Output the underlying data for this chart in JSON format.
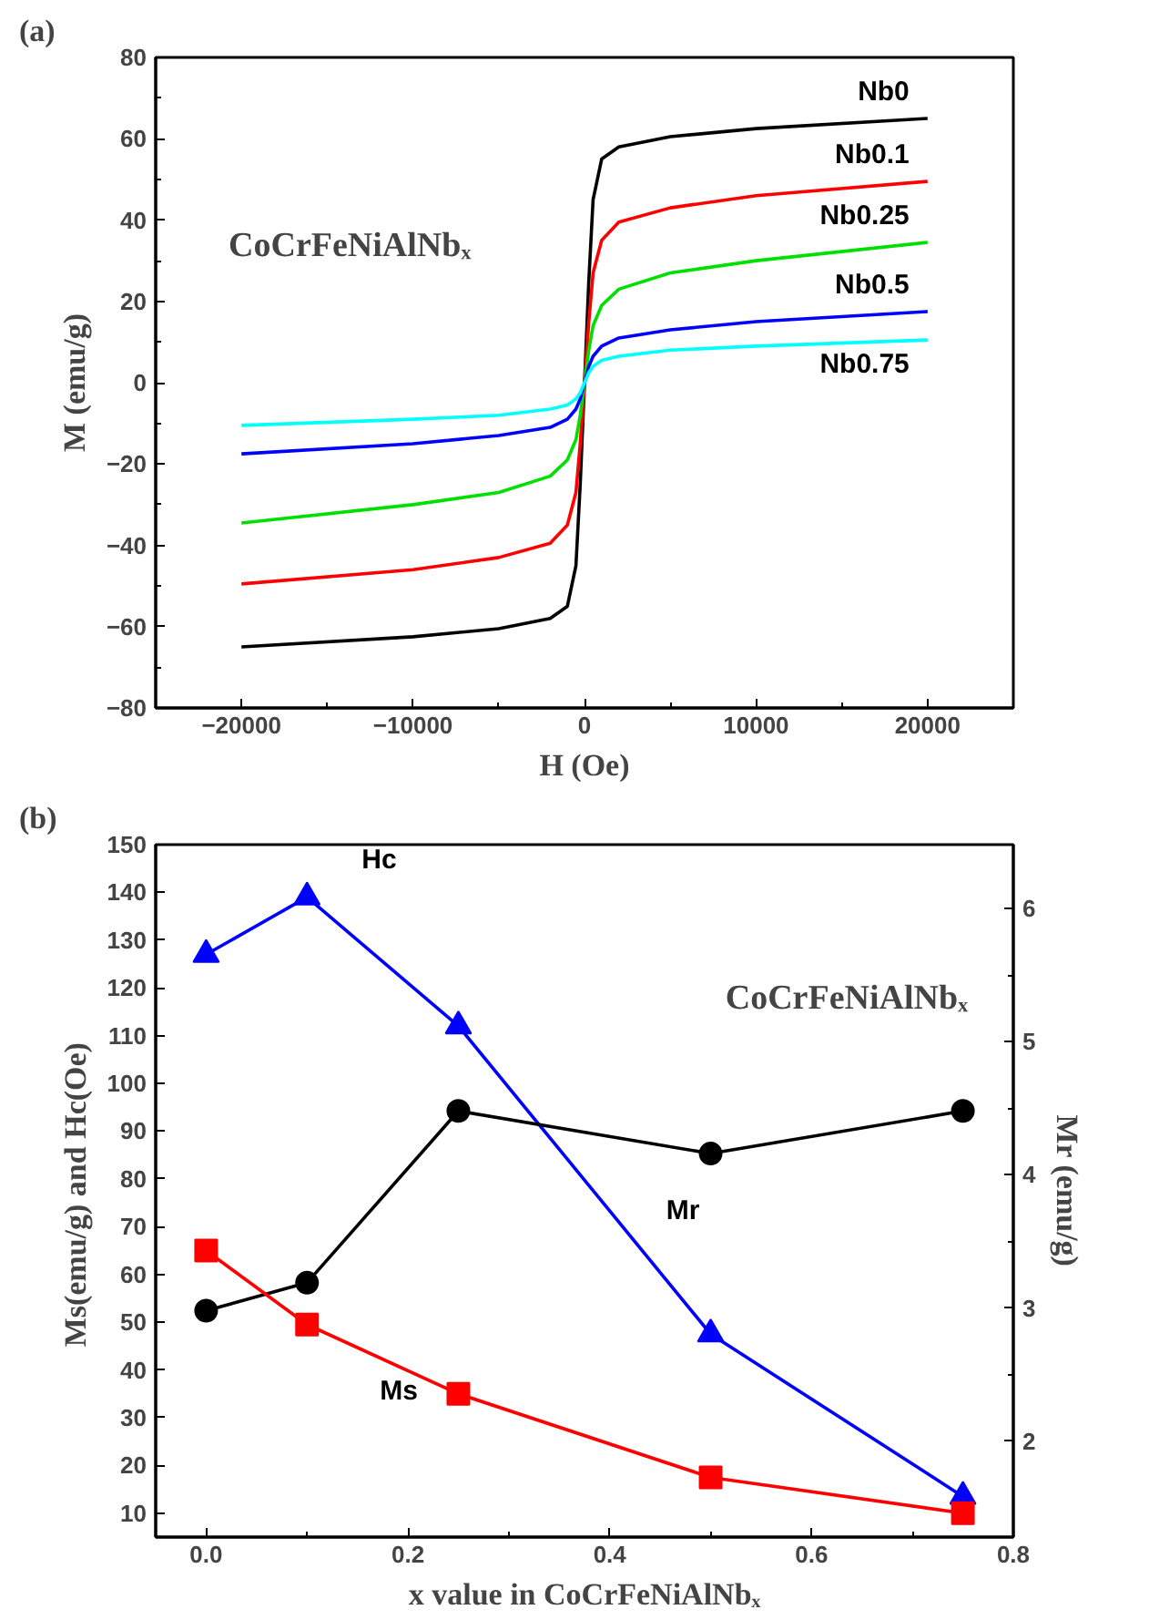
{
  "chart_data": [
    {
      "type": "line",
      "title": "(a)",
      "xlabel": "H (Oe)",
      "ylabel": "M (emu/g)",
      "xlim": [
        -25000,
        25000
      ],
      "ylim": [
        -80,
        80
      ],
      "xticks": [
        -20000,
        -10000,
        0,
        10000,
        20000
      ],
      "yticks": [
        -80,
        -60,
        -40,
        -20,
        0,
        20,
        40,
        60,
        80
      ],
      "grid": false,
      "marker": "none",
      "line_style": "solid",
      "annotations": [
        "CoCrFeNiAlNbₓ"
      ],
      "x": [
        -20000,
        -10000,
        -5000,
        -2000,
        -1000,
        -500,
        -250,
        0,
        250,
        500,
        1000,
        2000,
        5000,
        10000,
        20000
      ],
      "series": [
        {
          "name": "Nb0",
          "color": "#000000",
          "values": [
            -65,
            -62.5,
            -60.5,
            -58,
            -55,
            -45,
            -25,
            0,
            25,
            45,
            55,
            58,
            60.5,
            62.5,
            65
          ]
        },
        {
          "name": "Nb0.1",
          "color": "#ff0000",
          "values": [
            -49.5,
            -46,
            -43,
            -39.5,
            -35,
            -27,
            -15,
            0,
            15,
            27,
            35,
            39.5,
            43,
            46,
            49.5
          ]
        },
        {
          "name": "Nb0.25",
          "color": "#00e000",
          "values": [
            -34.5,
            -30,
            -27,
            -23,
            -19,
            -14,
            -8,
            0,
            8,
            14,
            19,
            23,
            27,
            30,
            34.5
          ]
        },
        {
          "name": "Nb0.5",
          "color": "#0000ff",
          "values": [
            -17.5,
            -15,
            -13,
            -11,
            -9,
            -6.5,
            -4,
            0,
            4,
            6.5,
            9,
            11,
            13,
            15,
            17.5
          ]
        },
        {
          "name": "Nb0.75",
          "color": "#00ffff",
          "values": [
            -10.5,
            -9,
            -8,
            -6.5,
            -5.5,
            -4,
            -2.5,
            0,
            2.5,
            4,
            5.5,
            6.5,
            8,
            9,
            10.5
          ]
        }
      ]
    },
    {
      "type": "line",
      "title": "(b)",
      "xlabel": "x value in CoCrFeNiAlNbₓ",
      "ylabel": "Ms(emu/g)  and Hc(Oe)",
      "y2label": "Mr (emu/g)",
      "xlim": [
        -0.05,
        0.8
      ],
      "ylim": [
        5,
        150
      ],
      "y2lim": [
        1.28,
        6.48
      ],
      "xticks": [
        {
          "value": 0,
          "label": "0.0"
        },
        0.2,
        0.4,
        0.6,
        0.8
      ],
      "yticks": [
        10,
        20,
        30,
        40,
        50,
        60,
        70,
        80,
        90,
        100,
        110,
        120,
        130,
        140,
        150
      ],
      "y2ticks": [
        2,
        3,
        4,
        5,
        6
      ],
      "grid": false,
      "line_style": "solid",
      "annotations": [
        "CoCrFeNiAlNbₓ"
      ],
      "x": [
        0,
        0.1,
        0.25,
        0.5,
        0.75
      ],
      "series": [
        {
          "name": "Hc",
          "color": "#0000ff",
          "marker": "triangle",
          "values": [
            127,
            139,
            112,
            47.5,
            13.5
          ]
        },
        {
          "name": "Mr",
          "color": "#000000",
          "marker": "circle",
          "axis": "y2",
          "values": [
            2.98,
            3.19,
            4.48,
            4.16,
            4.48
          ]
        },
        {
          "name": "Ms",
          "color": "#ff0000",
          "marker": "square",
          "values": [
            65,
            49.5,
            35,
            17.5,
            10
          ]
        }
      ]
    }
  ]
}
